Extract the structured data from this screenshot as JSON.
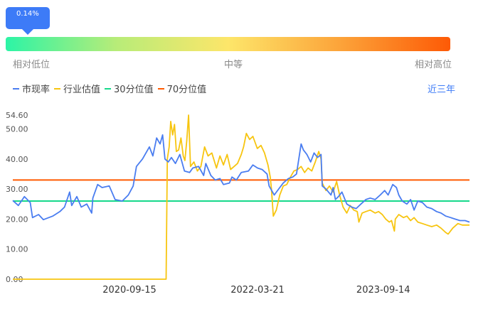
{
  "indicator": {
    "tooltip": "0.14%",
    "percentile": 0.14,
    "labels": {
      "low": "相对低位",
      "mid": "中等",
      "high": "相对高位"
    }
  },
  "legend": {
    "items": [
      {
        "label": "市现率",
        "color": "#4a7df0"
      },
      {
        "label": "行业估值",
        "color": "#f7c510"
      },
      {
        "label": "30分位值",
        "color": "#16d98b"
      },
      {
        "label": "70分位值",
        "color": "#ff5a00"
      }
    ],
    "range": "近三年"
  },
  "chart_data": {
    "type": "line",
    "x_range": [
      "2019-05-01",
      "2024-09-20"
    ],
    "y_range": [
      0,
      54.6
    ],
    "y_ticks": [
      "0.00",
      "10.00",
      "20.00",
      "30.00",
      "40.00",
      "50.00",
      "54.60"
    ],
    "x_ticks": [
      "2020-09-15",
      "2022-03-21",
      "2023-09-14"
    ],
    "series": [
      {
        "name": "市现率",
        "color": "#4a7df0",
        "points": [
          [
            "2019-05-01",
            26.2
          ],
          [
            "2019-05-25",
            24.5
          ],
          [
            "2019-06-20",
            27.5
          ],
          [
            "2019-07-15",
            25.5
          ],
          [
            "2019-07-25",
            20.5
          ],
          [
            "2019-08-20",
            21.5
          ],
          [
            "2019-09-10",
            19.8
          ],
          [
            "2019-10-20",
            21.0
          ],
          [
            "2019-11-20",
            22.5
          ],
          [
            "2019-12-10",
            24.0
          ],
          [
            "2020-01-01",
            29.0
          ],
          [
            "2020-01-10",
            24.5
          ],
          [
            "2020-02-01",
            27.5
          ],
          [
            "2020-02-20",
            24.0
          ],
          [
            "2020-03-15",
            25.0
          ],
          [
            "2020-04-05",
            22.0
          ],
          [
            "2020-04-10",
            27.0
          ],
          [
            "2020-05-01",
            31.5
          ],
          [
            "2020-05-20",
            30.5
          ],
          [
            "2020-06-20",
            31.0
          ],
          [
            "2020-07-15",
            26.5
          ],
          [
            "2020-08-15",
            26.0
          ],
          [
            "2020-09-10",
            28.0
          ],
          [
            "2020-10-01",
            31.0
          ],
          [
            "2020-10-15",
            37.5
          ],
          [
            "2020-11-10",
            40.0
          ],
          [
            "2020-12-10",
            44.0
          ],
          [
            "2020-12-25",
            41.0
          ],
          [
            "2021-01-10",
            47.0
          ],
          [
            "2021-01-25",
            45.0
          ],
          [
            "2021-02-05",
            48.0
          ],
          [
            "2021-02-15",
            40.0
          ],
          [
            "2021-03-01",
            39.0
          ],
          [
            "2021-03-15",
            40.5
          ],
          [
            "2021-04-01",
            38.5
          ],
          [
            "2021-04-20",
            41.5
          ],
          [
            "2021-05-10",
            36.0
          ],
          [
            "2021-06-01",
            35.5
          ],
          [
            "2021-06-15",
            37.0
          ],
          [
            "2021-07-10",
            37.5
          ],
          [
            "2021-08-01",
            34.5
          ],
          [
            "2021-08-10",
            38.5
          ],
          [
            "2021-09-01",
            34.5
          ],
          [
            "2021-09-20",
            33.0
          ],
          [
            "2021-10-10",
            33.5
          ],
          [
            "2021-10-25",
            31.5
          ],
          [
            "2021-11-20",
            32.0
          ],
          [
            "2021-12-01",
            34.0
          ],
          [
            "2021-12-20",
            33.0
          ],
          [
            "2022-01-10",
            35.5
          ],
          [
            "2022-02-10",
            36.0
          ],
          [
            "2022-03-01",
            38.0
          ],
          [
            "2022-03-21",
            37.0
          ],
          [
            "2022-04-10",
            36.5
          ],
          [
            "2022-05-01",
            35.0
          ],
          [
            "2022-05-10",
            31.0
          ],
          [
            "2022-06-01",
            28.0
          ],
          [
            "2022-06-20",
            30.0
          ],
          [
            "2022-07-10",
            32.0
          ],
          [
            "2022-08-01",
            33.5
          ],
          [
            "2022-08-20",
            34.0
          ],
          [
            "2022-09-05",
            35.0
          ],
          [
            "2022-09-25",
            45.0
          ],
          [
            "2022-10-05",
            43.0
          ],
          [
            "2022-10-20",
            41.5
          ],
          [
            "2022-11-05",
            39.0
          ],
          [
            "2022-11-20",
            42.0
          ],
          [
            "2022-12-05",
            40.5
          ],
          [
            "2022-12-20",
            41.5
          ],
          [
            "2022-12-25",
            31.0
          ],
          [
            "2023-01-10",
            30.0
          ],
          [
            "2023-02-01",
            28.0
          ],
          [
            "2023-02-10",
            30.5
          ],
          [
            "2023-02-20",
            26.5
          ],
          [
            "2023-03-05",
            27.5
          ],
          [
            "2023-03-20",
            29.0
          ],
          [
            "2023-04-10",
            25.0
          ],
          [
            "2023-05-01",
            24.0
          ],
          [
            "2023-05-20",
            23.5
          ],
          [
            "2023-06-10",
            25.0
          ],
          [
            "2023-07-01",
            26.5
          ],
          [
            "2023-07-20",
            27.0
          ],
          [
            "2023-08-10",
            26.5
          ],
          [
            "2023-09-01",
            28.0
          ],
          [
            "2023-09-20",
            29.5
          ],
          [
            "2023-10-05",
            28.0
          ],
          [
            "2023-10-25",
            31.5
          ],
          [
            "2023-11-10",
            30.5
          ],
          [
            "2023-11-20",
            28.0
          ],
          [
            "2023-12-05",
            26.0
          ],
          [
            "2023-12-25",
            25.0
          ],
          [
            "2024-01-10",
            26.5
          ],
          [
            "2024-01-25",
            23.0
          ],
          [
            "2024-02-10",
            26.0
          ],
          [
            "2024-03-01",
            25.5
          ],
          [
            "2024-03-20",
            24.0
          ],
          [
            "2024-04-10",
            23.5
          ],
          [
            "2024-05-01",
            22.5
          ],
          [
            "2024-05-20",
            22.0
          ],
          [
            "2024-06-10",
            21.0
          ],
          [
            "2024-07-01",
            20.5
          ],
          [
            "2024-07-20",
            20.0
          ],
          [
            "2024-08-10",
            19.5
          ],
          [
            "2024-09-01",
            19.5
          ],
          [
            "2024-09-20",
            19.0
          ]
        ]
      },
      {
        "name": "行业估值",
        "color": "#f7c510",
        "points": [
          [
            "2019-05-01",
            0.0
          ],
          [
            "2021-02-20",
            0.0
          ],
          [
            "2021-02-25",
            40.0
          ],
          [
            "2021-03-05",
            44.0
          ],
          [
            "2021-03-12",
            52.5
          ],
          [
            "2021-03-20",
            48.0
          ],
          [
            "2021-03-28",
            51.5
          ],
          [
            "2021-04-05",
            42.5
          ],
          [
            "2021-04-15",
            43.0
          ],
          [
            "2021-04-25",
            47.0
          ],
          [
            "2021-05-05",
            41.0
          ],
          [
            "2021-05-12",
            39.5
          ],
          [
            "2021-05-20",
            46.0
          ],
          [
            "2021-05-28",
            54.6
          ],
          [
            "2021-06-05",
            37.5
          ],
          [
            "2021-06-20",
            39.0
          ],
          [
            "2021-07-05",
            36.0
          ],
          [
            "2021-07-20",
            37.5
          ],
          [
            "2021-08-05",
            44.0
          ],
          [
            "2021-08-20",
            41.0
          ],
          [
            "2021-09-05",
            42.0
          ],
          [
            "2021-09-25",
            37.0
          ],
          [
            "2021-10-10",
            41.0
          ],
          [
            "2021-10-25",
            38.0
          ],
          [
            "2021-11-10",
            41.5
          ],
          [
            "2021-11-25",
            36.5
          ],
          [
            "2021-12-10",
            37.5
          ],
          [
            "2021-12-25",
            38.5
          ],
          [
            "2022-01-10",
            41.5
          ],
          [
            "2022-01-20",
            44.0
          ],
          [
            "2022-02-01",
            48.5
          ],
          [
            "2022-02-15",
            46.5
          ],
          [
            "2022-03-01",
            47.5
          ],
          [
            "2022-03-20",
            43.5
          ],
          [
            "2022-04-05",
            44.5
          ],
          [
            "2022-04-20",
            42.0
          ],
          [
            "2022-05-05",
            38.0
          ],
          [
            "2022-05-15",
            34.0
          ],
          [
            "2022-05-20",
            30.0
          ],
          [
            "2022-05-28",
            21.0
          ],
          [
            "2022-06-10",
            23.0
          ],
          [
            "2022-06-25",
            28.0
          ],
          [
            "2022-07-10",
            31.0
          ],
          [
            "2022-07-25",
            31.5
          ],
          [
            "2022-08-10",
            34.0
          ],
          [
            "2022-08-25",
            36.0
          ],
          [
            "2022-09-10",
            36.5
          ],
          [
            "2022-09-25",
            37.5
          ],
          [
            "2022-10-10",
            35.5
          ],
          [
            "2022-10-25",
            37.0
          ],
          [
            "2022-11-10",
            36.0
          ],
          [
            "2022-11-25",
            39.0
          ],
          [
            "2022-12-10",
            42.5
          ],
          [
            "2022-12-20",
            40.0
          ],
          [
            "2022-12-25",
            32.0
          ],
          [
            "2023-01-10",
            29.5
          ],
          [
            "2023-01-25",
            31.0
          ],
          [
            "2023-02-10",
            29.0
          ],
          [
            "2023-02-25",
            32.5
          ],
          [
            "2023-03-10",
            28.0
          ],
          [
            "2023-03-25",
            24.0
          ],
          [
            "2023-04-10",
            22.0
          ],
          [
            "2023-04-25",
            24.5
          ],
          [
            "2023-05-10",
            23.0
          ],
          [
            "2023-05-25",
            22.5
          ],
          [
            "2023-06-01",
            19.0
          ],
          [
            "2023-06-15",
            22.0
          ],
          [
            "2023-07-01",
            22.5
          ],
          [
            "2023-07-20",
            23.0
          ],
          [
            "2023-08-10",
            22.0
          ],
          [
            "2023-08-25",
            22.5
          ],
          [
            "2023-09-10",
            21.5
          ],
          [
            "2023-09-25",
            20.0
          ],
          [
            "2023-10-10",
            19.0
          ],
          [
            "2023-10-20",
            19.5
          ],
          [
            "2023-11-01",
            16.0
          ],
          [
            "2023-11-05",
            20.0
          ],
          [
            "2023-11-20",
            21.5
          ],
          [
            "2023-12-10",
            20.5
          ],
          [
            "2023-12-25",
            21.0
          ],
          [
            "2024-01-10",
            19.5
          ],
          [
            "2024-01-25",
            20.5
          ],
          [
            "2024-02-10",
            19.0
          ],
          [
            "2024-03-01",
            18.5
          ],
          [
            "2024-03-20",
            18.0
          ],
          [
            "2024-04-10",
            17.5
          ],
          [
            "2024-05-01",
            18.0
          ],
          [
            "2024-05-20",
            17.0
          ],
          [
            "2024-06-10",
            15.5
          ],
          [
            "2024-06-20",
            15.0
          ],
          [
            "2024-07-10",
            17.0
          ],
          [
            "2024-08-01",
            18.5
          ],
          [
            "2024-08-20",
            18.0
          ],
          [
            "2024-09-20",
            18.0
          ]
        ]
      },
      {
        "name": "30分位值",
        "color": "#16d98b",
        "points": [
          [
            "2019-05-01",
            26.0
          ],
          [
            "2024-09-20",
            26.0
          ]
        ]
      },
      {
        "name": "70分位值",
        "color": "#ff5a00",
        "points": [
          [
            "2019-05-01",
            33.0
          ],
          [
            "2024-09-20",
            33.0
          ]
        ]
      }
    ]
  }
}
